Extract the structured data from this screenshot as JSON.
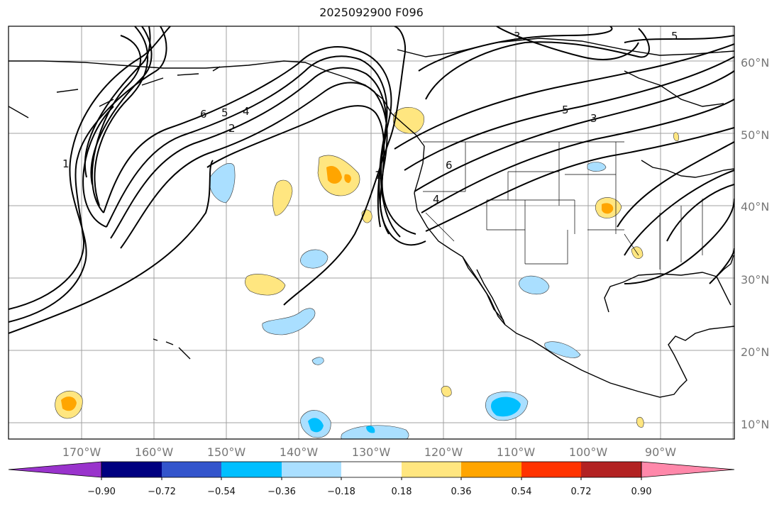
{
  "title": "2025092900 F096",
  "map": {
    "type": "contour-map",
    "latitude_labels": [
      "60°N",
      "50°N",
      "40°N",
      "30°N",
      "20°N",
      "10°N"
    ],
    "longitude_labels": [
      "170°W",
      "160°W",
      "150°W",
      "140°W",
      "130°W",
      "120°W",
      "110°W",
      "100°W",
      "90°W"
    ],
    "contour_labels": [
      "6",
      "5",
      "4",
      "2",
      "1",
      "1",
      "6",
      "4",
      "3",
      "5",
      "3",
      "5"
    ]
  },
  "colorbar": {
    "ticks": [
      "−0.90",
      "−0.72",
      "−0.54",
      "−0.36",
      "−0.18",
      "0.18",
      "0.36",
      "0.54",
      "0.72",
      "0.90"
    ],
    "colors": [
      "#9933cc",
      "#000080",
      "#3355cc",
      "#00bfff",
      "#aadfff",
      "#ffffff",
      "#ffe680",
      "#ffa500",
      "#ff3300",
      "#b22222",
      "#ff88aa"
    ]
  },
  "colors": {
    "grid": "#a0a0a0",
    "contour": "#000000",
    "coast": "#000000"
  }
}
